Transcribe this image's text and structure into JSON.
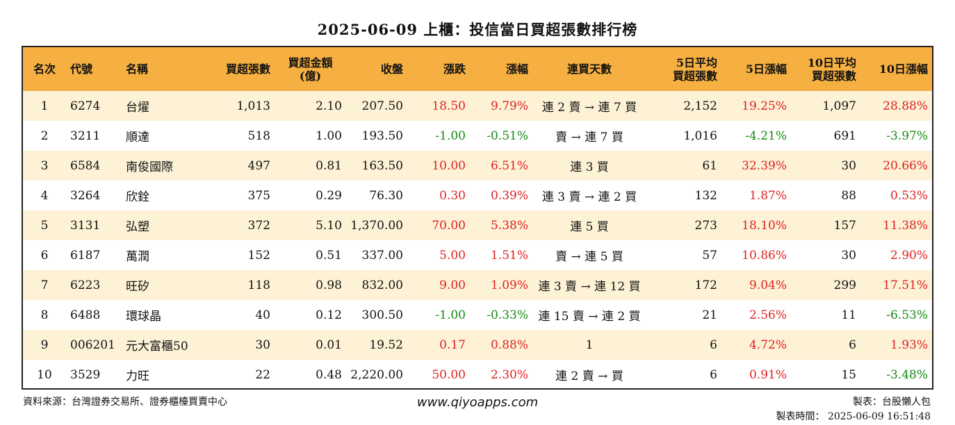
{
  "title": "2025-06-09 上櫃：投信當日買超張數排行榜",
  "headers": [
    "名次",
    "代號",
    "名稱",
    "買超張數",
    "買超金額\n(億)",
    "收盤",
    "漲跌",
    "漲幅",
    "連買天數",
    "5日平均\n買超張數",
    "5日漲幅",
    "10日平均\n買超張數",
    "10日漲幅"
  ],
  "rows": [
    {
      "rank": "1",
      "code": "6274",
      "name": "台燿",
      "net_buy": "1,013",
      "amount": "2.10",
      "close": "207.50",
      "change": "18.50",
      "change_pct": "9.79%",
      "streak": "連 2 賣 → 連 7 買",
      "avg5": "2,152",
      "pct5": "19.25%",
      "avg10": "1,097",
      "pct10": "28.88%",
      "change_dir": "up",
      "pct5_dir": "up",
      "pct10_dir": "up"
    },
    {
      "rank": "2",
      "code": "3211",
      "name": "順達",
      "net_buy": "518",
      "amount": "1.00",
      "close": "193.50",
      "change": "-1.00",
      "change_pct": "-0.51%",
      "streak": "賣 → 連 7 買",
      "avg5": "1,016",
      "pct5": "-4.21%",
      "avg10": "691",
      "pct10": "-3.97%",
      "change_dir": "down",
      "pct5_dir": "down",
      "pct10_dir": "down"
    },
    {
      "rank": "3",
      "code": "6584",
      "name": "南俊國際",
      "net_buy": "497",
      "amount": "0.81",
      "close": "163.50",
      "change": "10.00",
      "change_pct": "6.51%",
      "streak": "連 3 買",
      "avg5": "61",
      "pct5": "32.39%",
      "avg10": "30",
      "pct10": "20.66%",
      "change_dir": "up",
      "pct5_dir": "up",
      "pct10_dir": "up"
    },
    {
      "rank": "4",
      "code": "3264",
      "name": "欣銓",
      "net_buy": "375",
      "amount": "0.29",
      "close": "76.30",
      "change": "0.30",
      "change_pct": "0.39%",
      "streak": "連 3 賣 → 連 2 買",
      "avg5": "132",
      "pct5": "1.87%",
      "avg10": "88",
      "pct10": "0.53%",
      "change_dir": "up",
      "pct5_dir": "up",
      "pct10_dir": "up"
    },
    {
      "rank": "5",
      "code": "3131",
      "name": "弘塑",
      "net_buy": "372",
      "amount": "5.10",
      "close": "1,370.00",
      "change": "70.00",
      "change_pct": "5.38%",
      "streak": "連 5 買",
      "avg5": "273",
      "pct5": "18.10%",
      "avg10": "157",
      "pct10": "11.38%",
      "change_dir": "up",
      "pct5_dir": "up",
      "pct10_dir": "up"
    },
    {
      "rank": "6",
      "code": "6187",
      "name": "萬潤",
      "net_buy": "152",
      "amount": "0.51",
      "close": "337.00",
      "change": "5.00",
      "change_pct": "1.51%",
      "streak": "賣 → 連 5 買",
      "avg5": "57",
      "pct5": "10.86%",
      "avg10": "30",
      "pct10": "2.90%",
      "change_dir": "up",
      "pct5_dir": "up",
      "pct10_dir": "up"
    },
    {
      "rank": "7",
      "code": "6223",
      "name": "旺矽",
      "net_buy": "118",
      "amount": "0.98",
      "close": "832.00",
      "change": "9.00",
      "change_pct": "1.09%",
      "streak": "連 3 賣 → 連 12 買",
      "avg5": "172",
      "pct5": "9.04%",
      "avg10": "299",
      "pct10": "17.51%",
      "change_dir": "up",
      "pct5_dir": "up",
      "pct10_dir": "up"
    },
    {
      "rank": "8",
      "code": "6488",
      "name": "環球晶",
      "net_buy": "40",
      "amount": "0.12",
      "close": "300.50",
      "change": "-1.00",
      "change_pct": "-0.33%",
      "streak": "連 15 賣 → 連 2 買",
      "avg5": "21",
      "pct5": "2.56%",
      "avg10": "11",
      "pct10": "-6.53%",
      "change_dir": "down",
      "pct5_dir": "up",
      "pct10_dir": "down"
    },
    {
      "rank": "9",
      "code": "006201",
      "name": "元大富櫃50",
      "net_buy": "30",
      "amount": "0.01",
      "close": "19.52",
      "change": "0.17",
      "change_pct": "0.88%",
      "streak": "1",
      "avg5": "6",
      "pct5": "4.72%",
      "avg10": "6",
      "pct10": "1.93%",
      "change_dir": "up",
      "pct5_dir": "up",
      "pct10_dir": "up"
    },
    {
      "rank": "10",
      "code": "3529",
      "name": "力旺",
      "net_buy": "22",
      "amount": "0.48",
      "close": "2,220.00",
      "change": "50.00",
      "change_pct": "2.30%",
      "streak": "連 2 賣 → 買",
      "avg5": "6",
      "pct5": "0.91%",
      "avg10": "15",
      "pct10": "-3.48%",
      "change_dir": "up",
      "pct5_dir": "up",
      "pct10_dir": "down"
    }
  ],
  "footer": {
    "source": "資料來源：台灣證券交易所、證券櫃檯買賣中心",
    "website": "www.qiyoapps.com",
    "maker": "製表：台股懶人包",
    "made_time": "製表時間： 2025-06-09 16:51:48"
  },
  "colors": {
    "header_bg": "#f6b042",
    "row_alt_bg": "#fdf2d6",
    "up": "#e02020",
    "down": "#138a13"
  }
}
